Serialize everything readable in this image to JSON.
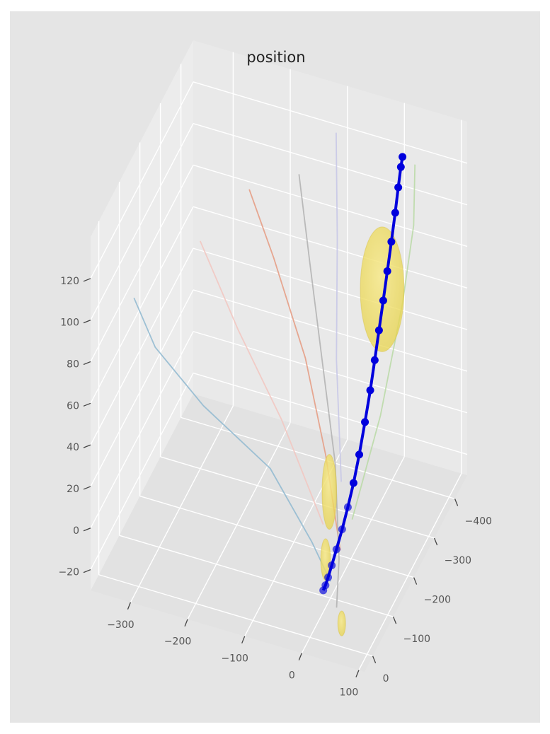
{
  "chart_data": {
    "type": "scatter3d",
    "title": "position",
    "xlabel": "",
    "ylabel": "",
    "zlabel": "",
    "grid": true,
    "x_ticks": [
      "−300",
      "−200",
      "−100",
      "0",
      "100"
    ],
    "y_ticks": [
      "−400",
      "−300",
      "−200",
      "−100",
      "0"
    ],
    "z_ticks": [
      "120",
      "100",
      "80",
      "60",
      "40",
      "20",
      "0",
      "−20"
    ],
    "colors": {
      "axes_bg": "#e5e5e5",
      "pane": "#ebebeb",
      "grid": "#ffffff",
      "main_track": "#0000dd",
      "ellipsoid": "#e8d44d"
    },
    "main_track": {
      "marker": "circle",
      "points": [
        [
          20,
          -395,
          128
        ],
        [
          19,
          -390,
          124
        ],
        [
          18,
          -380,
          116
        ],
        [
          17,
          -368,
          106
        ],
        [
          16,
          -352,
          95
        ],
        [
          15,
          -335,
          84
        ],
        [
          14,
          -318,
          73
        ],
        [
          13,
          -300,
          62
        ],
        [
          12,
          -282,
          51
        ],
        [
          11,
          -263,
          40
        ],
        [
          10,
          -240,
          29
        ],
        [
          9,
          -215,
          18
        ],
        [
          8,
          -190,
          9
        ],
        [
          7,
          -165,
          2
        ],
        [
          6,
          -140,
          -4
        ],
        [
          5,
          -115,
          -9
        ],
        [
          4,
          -95,
          -13
        ],
        [
          3,
          -80,
          -16
        ],
        [
          2,
          -70,
          -18
        ],
        [
          1,
          -62,
          -19
        ]
      ]
    },
    "other_tracks": [
      {
        "color": "#8fb8d0",
        "points": [
          [
            -330,
            -60,
            95
          ],
          [
            -300,
            -80,
            70
          ],
          [
            -230,
            -120,
            40
          ],
          [
            -120,
            -140,
            15
          ],
          [
            -40,
            -120,
            -10
          ],
          [
            0,
            -100,
            -22
          ]
        ]
      },
      {
        "color": "#e59a80",
        "points": [
          [
            -200,
            -260,
            120
          ],
          [
            -150,
            -240,
            95
          ],
          [
            -80,
            -200,
            60
          ],
          [
            -30,
            -160,
            25
          ],
          [
            10,
            -120,
            -10
          ]
        ]
      },
      {
        "color": "#f2c6c0",
        "points": [
          [
            -250,
            -160,
            110
          ],
          [
            -180,
            -150,
            75
          ],
          [
            -100,
            -140,
            40
          ],
          [
            -20,
            -120,
            0
          ]
        ]
      },
      {
        "color": "#b0b0b0",
        "points": [
          [
            -120,
            -280,
            130
          ],
          [
            -90,
            -250,
            95
          ],
          [
            -50,
            -200,
            60
          ],
          [
            -10,
            -150,
            25
          ],
          [
            15,
            -100,
            -10
          ],
          [
            25,
            -60,
            -25
          ]
        ]
      },
      {
        "color": "#c6c6e6",
        "points": [
          [
            -80,
            -350,
            140
          ],
          [
            -60,
            -300,
            100
          ],
          [
            -40,
            -240,
            55
          ],
          [
            -10,
            -180,
            10
          ]
        ]
      },
      {
        "color": "#b9d9a5",
        "points": [
          [
            40,
            -400,
            125
          ],
          [
            45,
            -380,
            100
          ],
          [
            40,
            -340,
            70
          ],
          [
            30,
            -260,
            30
          ],
          [
            20,
            -150,
            0
          ]
        ]
      }
    ],
    "ellipsoids": [
      {
        "center": [
          15,
          -310,
          80
        ],
        "radii": [
          45,
          45,
          30
        ]
      },
      {
        "center": [
          -20,
          -150,
          10
        ],
        "radii": [
          15,
          25,
          18
        ]
      },
      {
        "center": [
          -5,
          -90,
          -10
        ],
        "radii": [
          10,
          12,
          10
        ]
      },
      {
        "center": [
          70,
          40,
          -10
        ],
        "radii": [
          8,
          8,
          6
        ]
      }
    ]
  }
}
